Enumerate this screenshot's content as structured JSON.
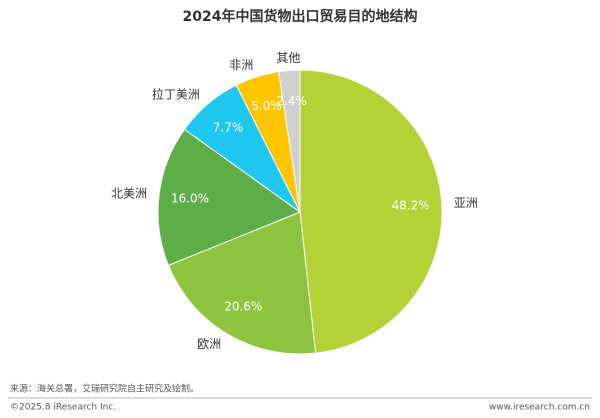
{
  "chart_data": {
    "type": "pie",
    "title": "2024年中国货物出口贸易目的地结构",
    "categories": [
      "亚洲",
      "欧洲",
      "北美洲",
      "拉丁美洲",
      "非洲",
      "其他"
    ],
    "values": [
      48.2,
      20.6,
      16.0,
      7.7,
      5.0,
      2.4
    ],
    "value_labels": [
      "48.2%",
      "20.6%",
      "16.0%",
      "7.7%",
      "5.0%",
      "2.4%"
    ],
    "colors": [
      "#b2d235",
      "#8cc43f",
      "#5fad46",
      "#1ec8f0",
      "#ffc600",
      "#d0d0d0"
    ]
  },
  "footer": {
    "source": "来源：海关总署，艾瑞研究院自主研究及绘制。",
    "copyright": "©2025.8 iResearch Inc.",
    "website": "www.iresearch.com.cn"
  }
}
